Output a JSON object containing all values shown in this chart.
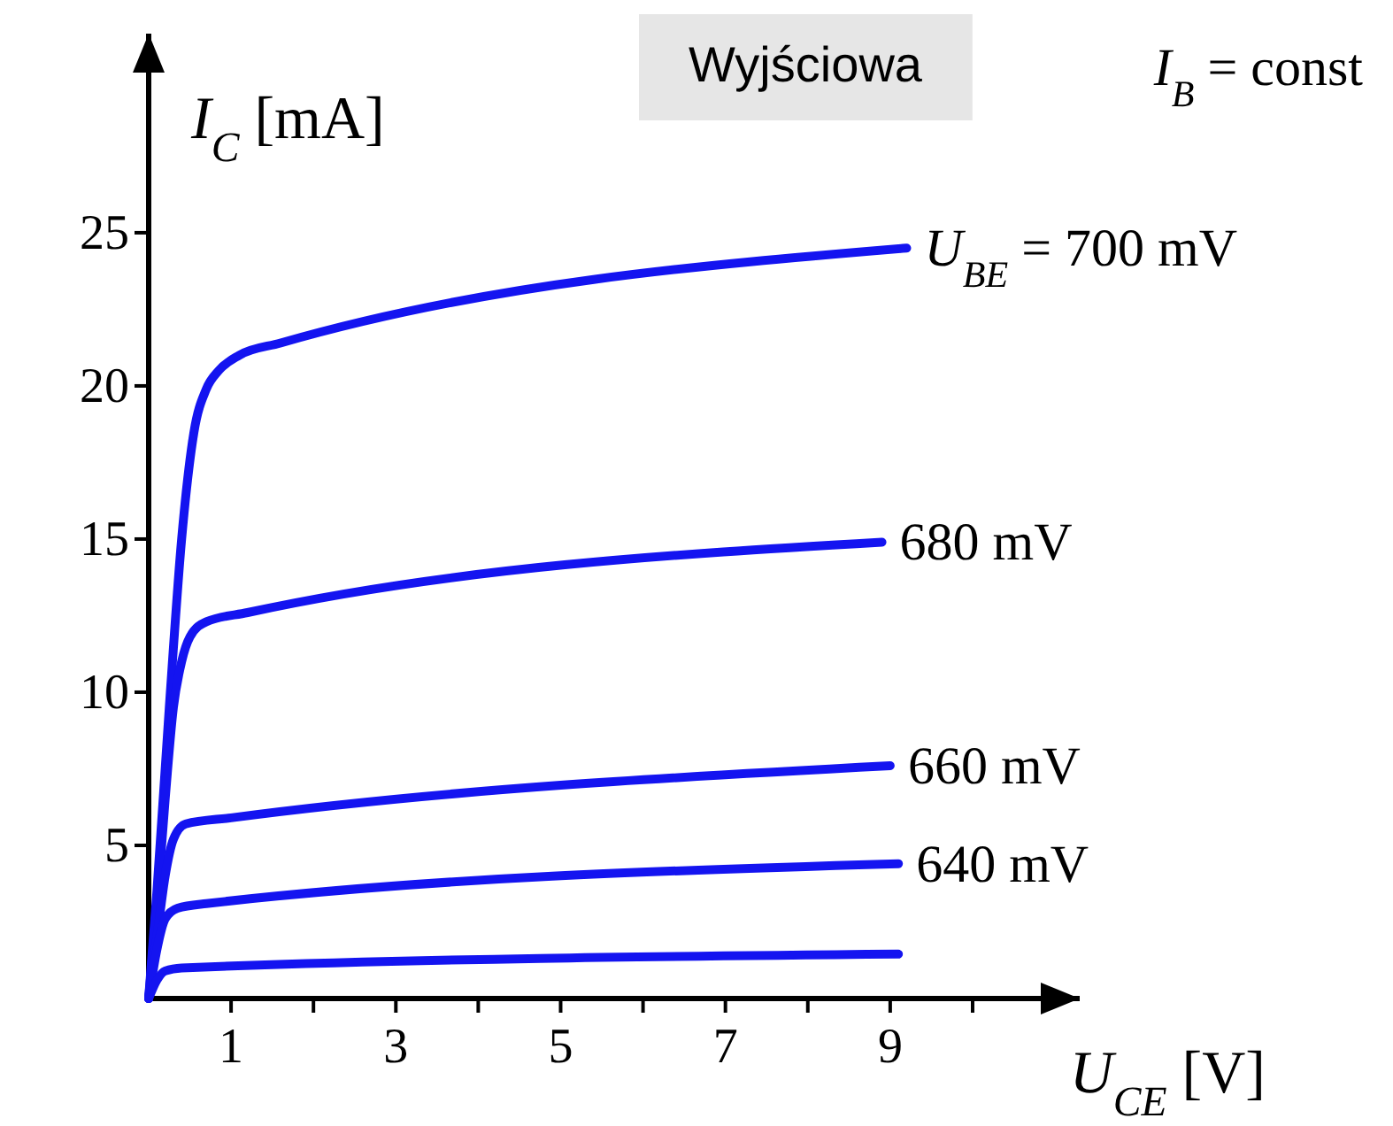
{
  "chart_data": {
    "type": "line",
    "title": "Wyjściowa",
    "annotations": [
      "I$_{B}$ = const"
    ],
    "xlabel": "U$_{CE}$ [V]",
    "ylabel": "I$_{C}$ [mA]",
    "xlim": [
      0,
      11.3
    ],
    "ylim": [
      0,
      31.5
    ],
    "xticks": [
      1,
      {
        "value": 2,
        "label": null
      },
      3,
      {
        "value": 4,
        "label": null
      },
      5,
      {
        "value": 6,
        "label": null
      },
      7,
      {
        "value": 8,
        "label": null
      },
      9,
      {
        "value": 10,
        "label": null
      }
    ],
    "yticks": [
      5,
      10,
      15,
      20,
      25
    ],
    "grid": false,
    "legend": false,
    "marker": "none",
    "line_style": "solid",
    "series": [
      {
        "name": "U$_{BE}$ = 700 mV",
        "color": "#1414f0",
        "x": [
          0,
          0.1,
          0.25,
          0.4,
          0.55,
          0.7,
          0.85,
          1.1,
          1.6,
          9.2
        ],
        "values": [
          0,
          3.5,
          9.5,
          15,
          18.5,
          19.9,
          20.5,
          21,
          21.4,
          24.5
        ]
      },
      {
        "name": "680 mV",
        "color": "#1414f0",
        "x": [
          0,
          0.1,
          0.2,
          0.3,
          0.4,
          0.5,
          0.7,
          1.2,
          8.9
        ],
        "values": [
          0,
          3,
          6.5,
          9.5,
          11,
          11.8,
          12.3,
          12.6,
          14.9
        ]
      },
      {
        "name": "660 mV",
        "color": "#1414f0",
        "x": [
          0,
          0.1,
          0.2,
          0.3,
          0.45,
          1,
          9
        ],
        "values": [
          0,
          2,
          4,
          5.2,
          5.7,
          5.9,
          7.6
        ]
      },
      {
        "name": "640 mV",
        "color": "#1414f0",
        "x": [
          0,
          0.1,
          0.2,
          0.35,
          0.7,
          9.1
        ],
        "values": [
          0,
          1.6,
          2.6,
          2.95,
          3.1,
          4.4
        ]
      },
      {
        "color": "#1414f0",
        "x": [
          0,
          0.1,
          0.2,
          0.4,
          9.1
        ],
        "values": [
          0,
          0.6,
          0.9,
          1.0,
          1.45
        ]
      }
    ]
  }
}
